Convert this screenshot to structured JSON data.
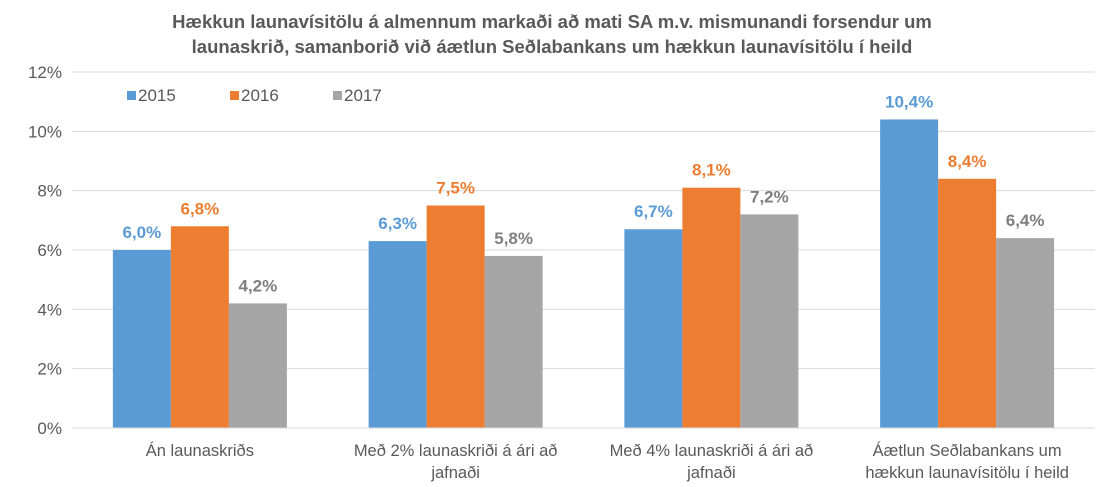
{
  "chart_data": {
    "type": "bar",
    "title": "Hækkun launavísitölu á almennum markaði að mati SA m.v. mismunandi  forsendur um launaskrið, samanborið við áætlun Seðlabankans um hækkun launavísitölu í heild",
    "title_lines": [
      "Hækkun launavísitölu á almennum markaði að mati SA m.v. mismunandi  forsendur um",
      "launaskrið, samanborið við áætlun Seðlabankans um hækkun launavísitölu í heild"
    ],
    "xlabel": "",
    "ylabel": "",
    "ylim": [
      0,
      12
    ],
    "yticks": [
      0,
      2,
      4,
      6,
      8,
      10,
      12
    ],
    "ytick_labels": [
      "0%",
      "2%",
      "4%",
      "6%",
      "8%",
      "10%",
      "12%"
    ],
    "grid": true,
    "legend_position": "top-left",
    "categories": [
      [
        "Án launaskriðs"
      ],
      [
        "Með 2% launaskriði á ári að",
        "jafnaði"
      ],
      [
        "Með 4% launaskriði á ári að",
        "jafnaði"
      ],
      [
        "Áætlun Seðlabankans um",
        "hækkun launavísitölu í heild"
      ]
    ],
    "series": [
      {
        "name": "2015",
        "color": "#5b9bd5",
        "values": [
          6.0,
          6.3,
          6.7,
          10.4
        ],
        "labels": [
          "6,0%",
          "6,3%",
          "6,7%",
          "10,4%"
        ]
      },
      {
        "name": "2016",
        "color": "#ed7d31",
        "values": [
          6.8,
          7.5,
          8.1,
          8.4
        ],
        "labels": [
          "6,8%",
          "7,5%",
          "8,1%",
          "8,4%"
        ]
      },
      {
        "name": "2017",
        "color": "#a5a5a5",
        "values": [
          4.2,
          5.8,
          7.2,
          6.4
        ],
        "labels": [
          "4,2%",
          "5,8%",
          "7,2%",
          "6,4%"
        ]
      }
    ],
    "label_colors": [
      "#5b9bd5",
      "#ed7d31",
      "#7f7f7f"
    ]
  }
}
